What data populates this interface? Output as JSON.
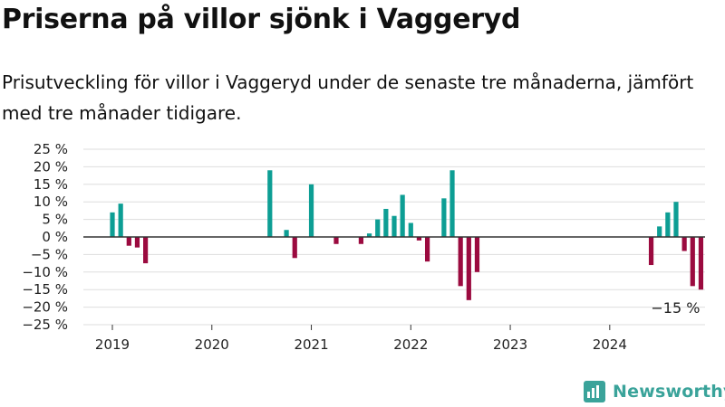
{
  "title": "Priserna på villor sjönk i Vaggeryd",
  "subtitle": "Prisutveckling för villor i Vaggeryd under de senaste tre månaderna, jämfört med tre månader tidigare.",
  "brand": {
    "name": "Newsworthy",
    "icon": "newsworthy-logo-icon",
    "color": "#3aa39a"
  },
  "colors": {
    "positive": "#0d9e94",
    "negative": "#9b0a3f",
    "grid": "#dddddd",
    "zero_line": "#333333",
    "text": "#222222"
  },
  "chart_data": {
    "type": "bar",
    "title": "Priserna på villor sjönk i Vaggeryd",
    "subtitle": "Prisutveckling för villor i Vaggeryd under de senaste tre månaderna, jämfört med tre månader tidigare.",
    "ylim": [
      -25,
      25
    ],
    "yticks": [
      25,
      20,
      15,
      10,
      5,
      0,
      -5,
      -10,
      -15,
      -20,
      -25
    ],
    "ytick_labels": [
      "25 %",
      "20 %",
      "15 %",
      "10 %",
      "5 %",
      "0 %",
      "−5 %",
      "−10 %",
      "−15 %",
      "−20 %",
      "−25 %"
    ],
    "xlim": [
      "2018-10",
      "2024-12"
    ],
    "xticks": [
      "2019-01",
      "2020-01",
      "2021-01",
      "2022-01",
      "2023-01",
      "2024-01"
    ],
    "xtick_labels": [
      "2019",
      "2020",
      "2021",
      "2022",
      "2023",
      "2024"
    ],
    "grid": true,
    "annotation": {
      "month": "2024-12",
      "value": -15,
      "text": "−15 %"
    },
    "data": [
      {
        "month": "2019-01",
        "value": 7
      },
      {
        "month": "2019-02",
        "value": 9.5
      },
      {
        "month": "2019-03",
        "value": -2.5
      },
      {
        "month": "2019-04",
        "value": -3
      },
      {
        "month": "2019-05",
        "value": -7.5
      },
      {
        "month": "2020-08",
        "value": 19
      },
      {
        "month": "2020-10",
        "value": 2
      },
      {
        "month": "2020-11",
        "value": -6
      },
      {
        "month": "2021-01",
        "value": 15
      },
      {
        "month": "2021-04",
        "value": -2
      },
      {
        "month": "2021-07",
        "value": -2
      },
      {
        "month": "2021-08",
        "value": 1
      },
      {
        "month": "2021-09",
        "value": 5
      },
      {
        "month": "2021-10",
        "value": 8
      },
      {
        "month": "2021-11",
        "value": 6
      },
      {
        "month": "2021-12",
        "value": 12
      },
      {
        "month": "2022-01",
        "value": 4
      },
      {
        "month": "2022-02",
        "value": -1
      },
      {
        "month": "2022-03",
        "value": -7
      },
      {
        "month": "2022-05",
        "value": 11
      },
      {
        "month": "2022-06",
        "value": 19
      },
      {
        "month": "2022-07",
        "value": -14
      },
      {
        "month": "2022-08",
        "value": -18
      },
      {
        "month": "2022-09",
        "value": -10
      },
      {
        "month": "2024-06",
        "value": -8
      },
      {
        "month": "2024-07",
        "value": 3
      },
      {
        "month": "2024-08",
        "value": 7
      },
      {
        "month": "2024-09",
        "value": 10
      },
      {
        "month": "2024-10",
        "value": -4
      },
      {
        "month": "2024-11",
        "value": -14
      },
      {
        "month": "2024-12",
        "value": -15
      }
    ]
  }
}
